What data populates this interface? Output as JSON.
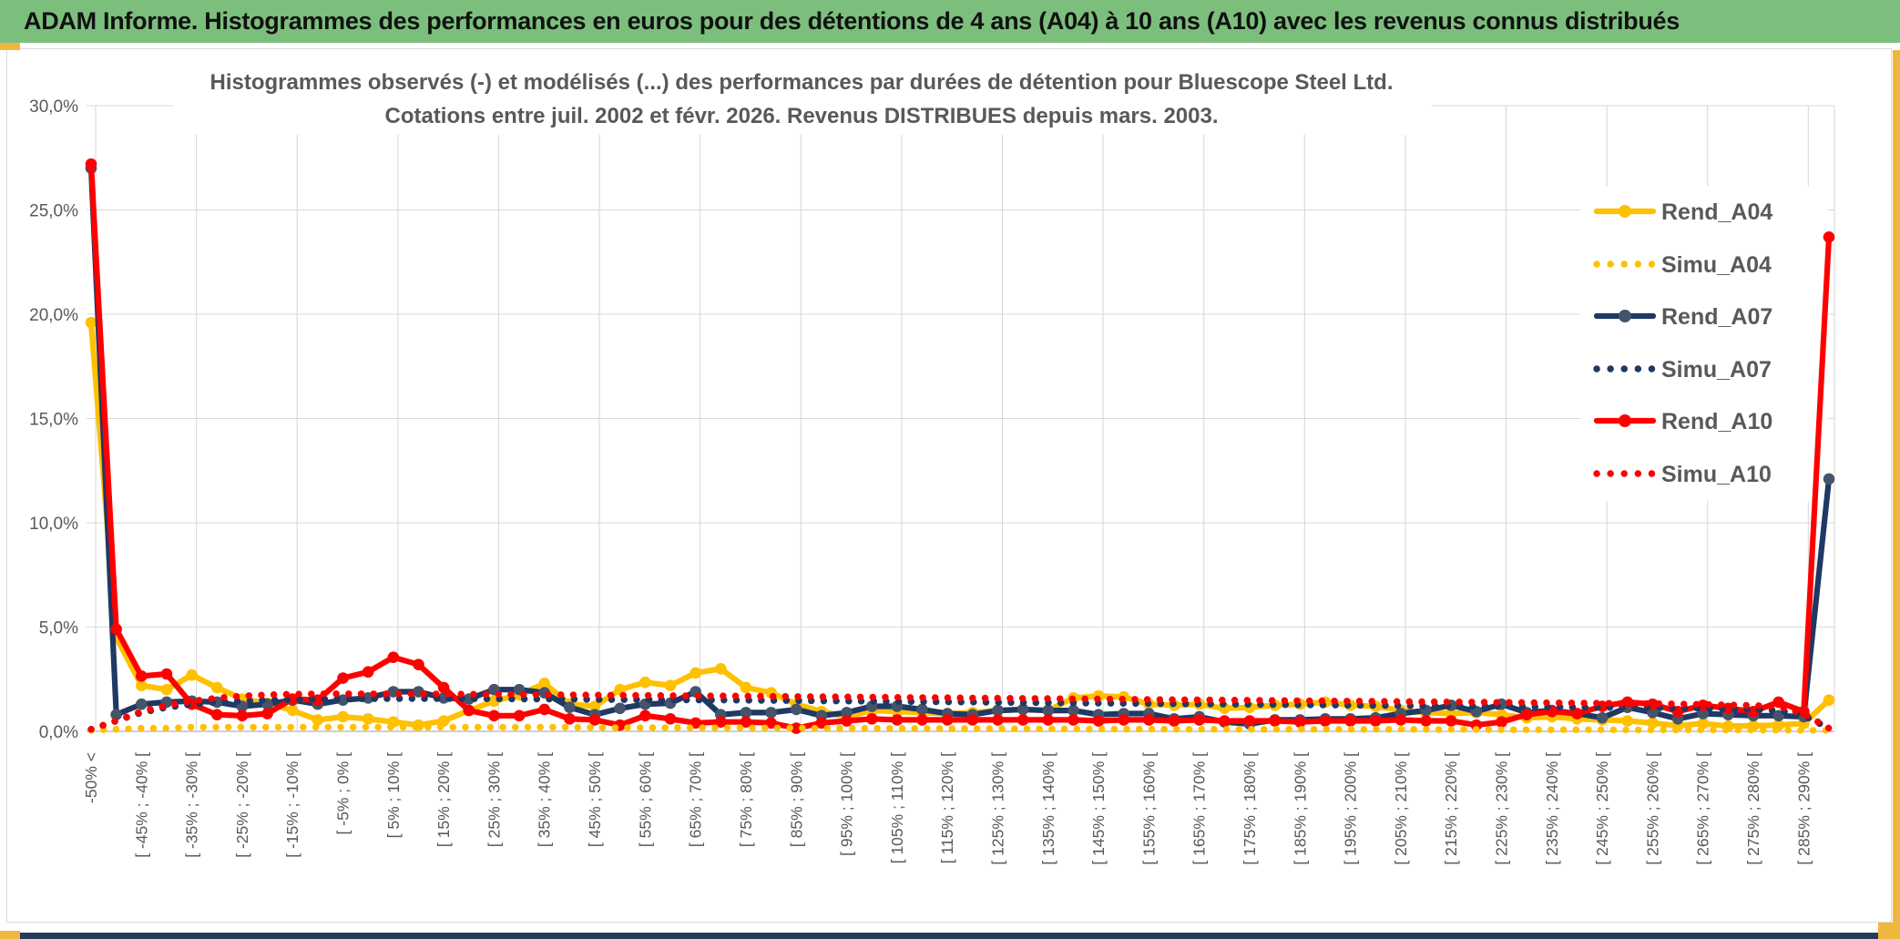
{
  "header": {
    "title": "ADAM Informe. Histogrammes des performances en euros pour des détentions de 4 ans (A04) à 10 ans (A10) avec les revenus connus distribués"
  },
  "colors": {
    "header_bg": "#7CBF7D",
    "header_text": "#111111",
    "gold_accent": "#EFB73E",
    "bottom_bar": "#283A5B",
    "grid": "#D9D9D9",
    "axis_text": "#595959",
    "title_text": "#595959",
    "series_a04": "#FFC000",
    "series_a07": "#1F3864",
    "series_a07_marker": "#44546A",
    "series_a10": "#FF0000"
  },
  "chart_data": {
    "type": "line",
    "title_line1": "Histogrammes observés (-) et modélisés (...) des performances par durées de détention pour Bluescope Steel Ltd.",
    "title_line2": "Cotations entre juil. 2002 et févr. 2026. Revenus DISTRIBUES depuis mars. 2003.",
    "ylabel": "",
    "xlabel": "",
    "ylim": [
      0,
      30
    ],
    "y_tick_labels": [
      "0,0%",
      "5,0%",
      "10,0%",
      "15,0%",
      "20,0%",
      "25,0%",
      "30,0%"
    ],
    "grid": true,
    "legend_position": "right-inside",
    "n_points": 70,
    "x_label_every_n_points": 2,
    "x_labels": [
      "-50% <",
      "[ -45% ; -40% [",
      "[ -35% ; -30% [",
      "[ -25% ; -20% [",
      "[ -15% ; -10% [",
      "[ -5% ; 0% [",
      "[ 5% ; 10% [",
      "[ 15% ; 20% [",
      "[ 25% ; 30% [",
      "[ 35% ; 40% [",
      "[ 45% ; 50% [",
      "[ 55% ; 60% [",
      "[ 65% ; 70% [",
      "[ 75% ; 80% [",
      "[ 85% ; 90% [",
      "[ 95% ; 100% [",
      "[ 105% ; 110% [",
      "[ 115% ; 120% [",
      "[ 125% ; 130% [",
      "[ 135% ; 140% [",
      "[ 145% ; 150% [",
      "[ 155% ; 160% [",
      "[ 165% ; 170% [",
      "[ 175% ; 180% [",
      "[ 185% ; 190% [",
      "[ 195% ; 200% [",
      "[ 205% ; 210% [",
      "[ 215% ; 220% [",
      "[ 225% ; 230% [",
      "[ 235% ; 240% [",
      "[ 245% ; 250% [",
      "[ 255% ; 260% [",
      "[ 265% ; 270% [",
      "[ 275% ; 280% [",
      "[ 285% ; 290% ["
    ],
    "series": [
      {
        "name": "Rend_A04",
        "style": "solid",
        "color": "#FFC000",
        "marker_color": "#FFC000",
        "values": [
          19.6,
          4.5,
          2.2,
          2.0,
          2.7,
          2.1,
          1.55,
          1.35,
          1.0,
          0.55,
          0.7,
          0.6,
          0.45,
          0.3,
          0.5,
          1.0,
          1.45,
          1.75,
          2.3,
          1.3,
          1.2,
          2.0,
          2.35,
          2.2,
          2.8,
          3.0,
          2.1,
          1.85,
          1.3,
          0.95,
          0.7,
          1.0,
          0.95,
          0.9,
          0.85,
          0.9,
          1.0,
          1.05,
          1.0,
          1.6,
          1.7,
          1.65,
          1.3,
          1.25,
          1.3,
          1.1,
          1.15,
          1.25,
          1.3,
          1.4,
          1.25,
          1.2,
          1.0,
          0.9,
          0.85,
          0.9,
          0.8,
          0.65,
          0.7,
          0.6,
          0.55,
          0.5,
          0.4,
          0.27,
          0.38,
          0.25,
          0.27,
          0.3,
          0.38,
          1.5
        ]
      },
      {
        "name": "Simu_A04",
        "style": "dotted",
        "color": "#FFC000",
        "marker_color": "#FFC000",
        "values": [
          0.05,
          0.1,
          0.15,
          0.15,
          0.2,
          0.2,
          0.2,
          0.2,
          0.2,
          0.2,
          0.2,
          0.2,
          0.2,
          0.2,
          0.2,
          0.2,
          0.2,
          0.2,
          0.2,
          0.2,
          0.18,
          0.18,
          0.18,
          0.18,
          0.17,
          0.17,
          0.17,
          0.16,
          0.16,
          0.15,
          0.15,
          0.15,
          0.14,
          0.14,
          0.13,
          0.13,
          0.13,
          0.12,
          0.12,
          0.12,
          0.11,
          0.11,
          0.11,
          0.1,
          0.1,
          0.1,
          0.1,
          0.1,
          0.1,
          0.1,
          0.1,
          0.1,
          0.1,
          0.09,
          0.09,
          0.09,
          0.08,
          0.08,
          0.08,
          0.08,
          0.08,
          0.07,
          0.07,
          0.07,
          0.07,
          0.07,
          0.06,
          0.06,
          0.05,
          0.05
        ]
      },
      {
        "name": "Rend_A07",
        "style": "solid",
        "color": "#1F3864",
        "marker_color": "#44546A",
        "values": [
          27.0,
          0.8,
          1.3,
          1.4,
          1.45,
          1.4,
          1.2,
          1.3,
          1.5,
          1.3,
          1.5,
          1.6,
          1.9,
          1.9,
          1.6,
          1.55,
          2.0,
          2.0,
          1.85,
          1.15,
          0.8,
          1.1,
          1.3,
          1.35,
          1.9,
          0.8,
          0.9,
          0.9,
          1.05,
          0.75,
          0.9,
          1.2,
          1.2,
          1.05,
          0.85,
          0.8,
          1.0,
          1.05,
          1.0,
          1.0,
          0.8,
          0.85,
          0.85,
          0.6,
          0.7,
          0.45,
          0.35,
          0.55,
          0.55,
          0.6,
          0.6,
          0.65,
          0.85,
          1.0,
          1.25,
          0.95,
          1.3,
          0.9,
          1.0,
          0.85,
          0.65,
          1.15,
          0.9,
          0.6,
          0.85,
          0.8,
          0.75,
          0.75,
          0.7,
          12.1
        ]
      },
      {
        "name": "Simu_A07",
        "style": "dotted",
        "color": "#1F3864",
        "marker_color": "#1F3864",
        "values": [
          0.1,
          0.5,
          0.9,
          1.15,
          1.3,
          1.4,
          1.45,
          1.5,
          1.52,
          1.55,
          1.55,
          1.56,
          1.57,
          1.57,
          1.57,
          1.56,
          1.56,
          1.55,
          1.55,
          1.54,
          1.53,
          1.52,
          1.52,
          1.51,
          1.5,
          1.5,
          1.49,
          1.48,
          1.47,
          1.46,
          1.45,
          1.44,
          1.43,
          1.42,
          1.41,
          1.4,
          1.39,
          1.38,
          1.37,
          1.36,
          1.35,
          1.34,
          1.33,
          1.32,
          1.31,
          1.3,
          1.29,
          1.28,
          1.27,
          1.26,
          1.25,
          1.24,
          1.23,
          1.22,
          1.21,
          1.2,
          1.19,
          1.18,
          1.17,
          1.16,
          1.15,
          1.14,
          1.13,
          1.12,
          1.1,
          1.08,
          1.05,
          1.0,
          0.75,
          0.15
        ]
      },
      {
        "name": "Rend_A10",
        "style": "solid",
        "color": "#FF0000",
        "marker_color": "#FF0000",
        "values": [
          27.2,
          4.9,
          2.65,
          2.75,
          1.3,
          0.8,
          0.75,
          0.85,
          1.55,
          1.5,
          2.55,
          2.85,
          3.55,
          3.2,
          2.1,
          1.0,
          0.75,
          0.75,
          1.05,
          0.6,
          0.55,
          0.3,
          0.75,
          0.6,
          0.4,
          0.45,
          0.45,
          0.4,
          0.15,
          0.4,
          0.5,
          0.6,
          0.55,
          0.55,
          0.55,
          0.55,
          0.55,
          0.55,
          0.55,
          0.55,
          0.5,
          0.55,
          0.55,
          0.5,
          0.55,
          0.5,
          0.5,
          0.5,
          0.45,
          0.5,
          0.5,
          0.5,
          0.55,
          0.5,
          0.5,
          0.3,
          0.45,
          0.8,
          0.95,
          0.85,
          1.2,
          1.4,
          1.3,
          0.95,
          1.25,
          1.1,
          0.95,
          1.4,
          0.95,
          23.7
        ]
      },
      {
        "name": "Simu_A10",
        "style": "dotted",
        "color": "#FF0000",
        "marker_color": "#FF0000",
        "values": [
          0.1,
          0.5,
          0.95,
          1.25,
          1.45,
          1.6,
          1.7,
          1.75,
          1.78,
          1.8,
          1.8,
          1.8,
          1.8,
          1.8,
          1.79,
          1.78,
          1.78,
          1.77,
          1.76,
          1.75,
          1.74,
          1.73,
          1.72,
          1.71,
          1.7,
          1.7,
          1.69,
          1.68,
          1.67,
          1.66,
          1.65,
          1.64,
          1.63,
          1.62,
          1.61,
          1.6,
          1.59,
          1.58,
          1.57,
          1.56,
          1.55,
          1.54,
          1.53,
          1.52,
          1.51,
          1.5,
          1.49,
          1.48,
          1.47,
          1.46,
          1.45,
          1.44,
          1.43,
          1.42,
          1.41,
          1.4,
          1.39,
          1.38,
          1.37,
          1.36,
          1.35,
          1.34,
          1.33,
          1.31,
          1.29,
          1.27,
          1.24,
          1.2,
          0.85,
          0.15
        ]
      }
    ]
  }
}
